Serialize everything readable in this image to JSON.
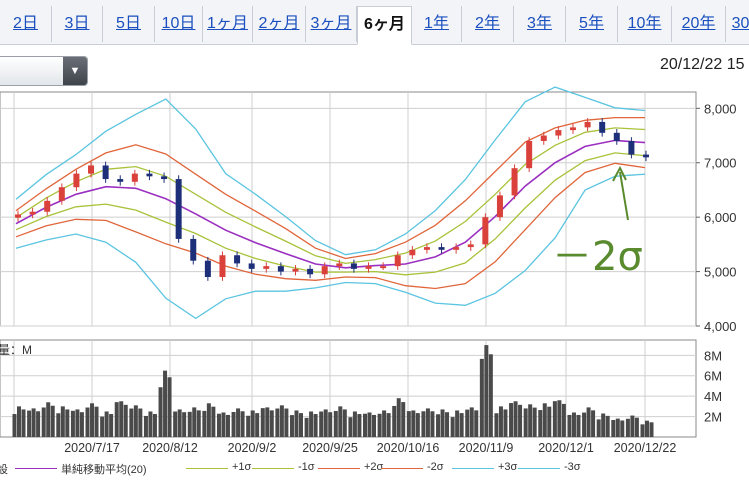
{
  "tabs": [
    {
      "label": "2日"
    },
    {
      "label": "3日"
    },
    {
      "label": "5日"
    },
    {
      "label": "10日"
    },
    {
      "label": "1ヶ月"
    },
    {
      "label": "2ヶ月"
    },
    {
      "label": "3ヶ月"
    },
    {
      "label": "6ヶ月",
      "active": true
    },
    {
      "label": "1年"
    },
    {
      "label": "2年"
    },
    {
      "label": "3年"
    },
    {
      "label": "5年"
    },
    {
      "label": "10年"
    },
    {
      "label": "20年"
    },
    {
      "label": "30"
    }
  ],
  "header": {
    "select_value": "",
    "datetime": "20/12/22 15"
  },
  "annotation": {
    "text": "－2σ",
    "color": "#5a8a2e"
  },
  "colors": {
    "up": "#d9413a",
    "down": "#1e2f7a",
    "sma": "#9b2fc0",
    "sigma1": "#a8c23a",
    "sigma2": "#e0653a",
    "sigma3": "#5bc4e0",
    "volume": "#4a4a4a"
  },
  "chart_data": {
    "type": "candlestick",
    "price_axis": {
      "ylim": [
        4000,
        8300
      ],
      "ticks": [
        "8,000",
        "7,000",
        "6,000",
        "5,000",
        "4,000"
      ]
    },
    "x_tick_labels": [
      "2020/7/17",
      "2020/8/12",
      "2020/9/2",
      "2020/9/25",
      "2020/10/16",
      "2020/11/9",
      "2020/12/1",
      "2020/12/22"
    ],
    "close_approx": [
      6050,
      6100,
      6300,
      6550,
      6800,
      6950,
      6700,
      6650,
      6800,
      6750,
      6700,
      5600,
      5200,
      4900,
      5300,
      5150,
      5050,
      5100,
      5000,
      5050,
      4950,
      5100,
      5150,
      5050,
      5100,
      5100,
      5300,
      5400,
      5450,
      5400,
      5450,
      5500,
      6000,
      6400,
      6900,
      7400,
      7500,
      7600,
      7650,
      7750,
      7550,
      7400,
      7150,
      7100
    ],
    "bands": {
      "sma": [
        5880,
        6180,
        6420,
        6560,
        6530,
        6340,
        6060,
        5760,
        5530,
        5330,
        5140,
        5070,
        5110,
        5140,
        5270,
        5540,
        6010,
        6570,
        7000,
        7300,
        7410,
        7370
      ],
      "plus1": [
        5990,
        6350,
        6650,
        6880,
        6930,
        6750,
        6420,
        6090,
        5820,
        5560,
        5290,
        5150,
        5220,
        5340,
        5560,
        5920,
        6420,
        6970,
        7320,
        7560,
        7640,
        7610
      ],
      "plus2": [
        6120,
        6520,
        6880,
        7180,
        7330,
        7160,
        6790,
        6420,
        6110,
        5790,
        5430,
        5240,
        5330,
        5540,
        5850,
        6300,
        6840,
        7380,
        7640,
        7780,
        7830,
        7830
      ],
      "plus3": [
        6330,
        6780,
        7150,
        7580,
        7890,
        8170,
        7620,
        6800,
        6420,
        6010,
        5570,
        5310,
        5400,
        5690,
        6120,
        6690,
        7420,
        8120,
        8390,
        8200,
        8010,
        7960
      ],
      "minus1": [
        5770,
        6010,
        6190,
        6240,
        6130,
        5910,
        5700,
        5430,
        5240,
        5100,
        4990,
        4990,
        5000,
        4940,
        4990,
        5160,
        5600,
        6170,
        6680,
        7040,
        7180,
        7130
      ],
      "minus2": [
        5640,
        5840,
        5960,
        5940,
        5730,
        5510,
        5340,
        5100,
        4950,
        4870,
        4840,
        4900,
        4890,
        4740,
        4690,
        4780,
        5180,
        5770,
        6360,
        6820,
        6990,
        6910
      ],
      "minus3": [
        5430,
        5580,
        5690,
        5540,
        5170,
        4510,
        4140,
        4500,
        4640,
        4640,
        4700,
        4800,
        4780,
        4620,
        4420,
        4380,
        4600,
        5020,
        5620,
        6500,
        6750,
        6790
      ]
    },
    "volume_axis": {
      "ylim": [
        0,
        9500000
      ],
      "ticks": [
        "8M",
        "6M",
        "4M",
        "2M"
      ],
      "unit_label": "M"
    },
    "volume_approx": [
      3000000,
      2800000,
      3400000,
      3000000,
      2700000,
      3300000,
      2500000,
      3500000,
      3100000,
      2500000,
      6500000,
      2700000,
      2900000,
      3300000,
      2400000,
      2800000,
      2600000,
      2900000,
      3100000,
      2600000,
      2500000,
      2700000,
      3000000,
      2500000,
      2400000,
      2600000,
      3800000,
      2600000,
      2800000,
      2700000,
      2600000,
      2900000,
      9000000,
      3000000,
      3500000,
      3200000,
      3300000,
      3600000,
      2400000,
      2900000,
      2300000,
      1800000,
      2100000,
      1600000
    ],
    "legend": [
      {
        "label": "単純移動平均(20)",
        "color": "#9b2fc0"
      },
      {
        "label": "+1σ",
        "color": "#a8c23a"
      },
      {
        "label": "-1σ",
        "color": "#a8c23a"
      },
      {
        "label": "+2σ",
        "color": "#e0653a"
      },
      {
        "label": "-2σ",
        "color": "#e0653a"
      },
      {
        "label": "+3σ",
        "color": "#5bc4e0"
      },
      {
        "label": "-3σ",
        "color": "#5bc4e0"
      }
    ],
    "legend_prefix": "設",
    "volume_title_prefix": "量："
  }
}
